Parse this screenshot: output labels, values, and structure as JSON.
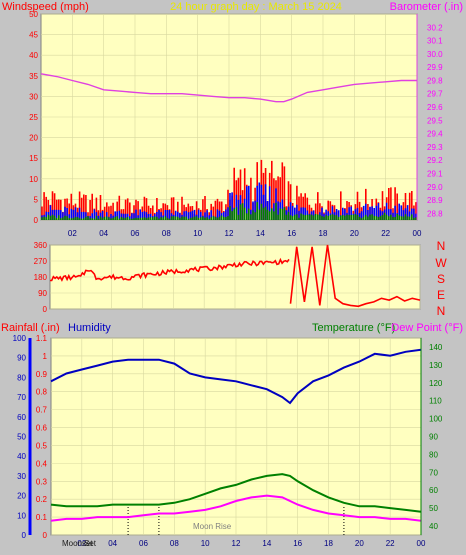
{
  "header": {
    "windspeed_label": "Windspeed (mph)",
    "title": "24 hour graph day : March 15 2024",
    "barometer_label": "Barometer (.in)"
  },
  "direction_labels": [
    "N",
    "W",
    "S",
    "E",
    "N"
  ],
  "lower_header": {
    "rainfall_label": "Rainfall (.in)",
    "humidity_label": "Humidity",
    "temperature_label": "Temperature (°F)",
    "dewpoint_label": "Dew Point (°F)"
  },
  "footer": {
    "moonset_label": "Moonset",
    "moonrise_label": "Moon Rise",
    "sunset_label": "Set"
  },
  "colors": {
    "panel_bg": "#ffffc0",
    "outer_bg": "#c4c4c4",
    "wind_gust": "#ff0000",
    "wind_avg": "#0000ff",
    "wind_low": "#008000",
    "barometer": "#e040e0",
    "direction": "#ff0000",
    "humidity": "#0000c0",
    "temperature": "#008000",
    "dewpoint": "#ff00ff",
    "rainfall": "#ff0000"
  },
  "chart_data": [
    {
      "type": "bar",
      "name": "wind-and-barometer",
      "x_ticks": [
        "02",
        "04",
        "06",
        "08",
        "10",
        "12",
        "14",
        "16",
        "18",
        "20",
        "22",
        "00"
      ],
      "xlim": [
        0,
        24
      ],
      "wind_ylim": [
        0,
        50
      ],
      "wind_ticks": [
        0,
        5,
        10,
        15,
        20,
        25,
        30,
        35,
        40,
        45,
        50
      ],
      "baro_ylim": [
        28.75,
        30.3
      ],
      "baro_ticks": [
        28.8,
        28.9,
        29.0,
        29.1,
        29.2,
        29.3,
        29.4,
        29.5,
        29.6,
        29.7,
        29.8,
        29.9,
        30.0,
        30.1,
        30.2
      ],
      "gust_profile": {
        "x": [
          0,
          2,
          4,
          6,
          8,
          10,
          11.8,
          12,
          14,
          15.5,
          16,
          18,
          20,
          22,
          24
        ],
        "y": [
          6,
          5,
          4.5,
          4,
          4,
          4,
          4.5,
          9,
          11,
          10,
          6,
          5,
          5,
          6,
          5
        ]
      },
      "avg_profile": {
        "x": [
          0,
          2,
          4,
          6,
          8,
          10,
          11.8,
          12,
          14,
          15.5,
          16,
          18,
          20,
          22,
          24
        ],
        "y": [
          3,
          2.5,
          2,
          2,
          2,
          2,
          2,
          6,
          7,
          6.5,
          3.5,
          3,
          3,
          3.5,
          3
        ]
      },
      "low_profile": {
        "x": [
          0,
          2,
          4,
          6,
          8,
          10,
          11.8,
          12,
          14,
          15.5,
          16,
          18,
          20,
          22,
          24
        ],
        "y": [
          1.2,
          1,
          0.8,
          0.8,
          0.8,
          0.8,
          1,
          3,
          4,
          3.5,
          1.5,
          1.2,
          1.2,
          1.5,
          1.2
        ]
      },
      "barometer": {
        "x": [
          0,
          1,
          2,
          3,
          4,
          5,
          6,
          7,
          8,
          9,
          10,
          11,
          12,
          13,
          14,
          15,
          15.5,
          16,
          17,
          18,
          19,
          20,
          21,
          22,
          23,
          24
        ],
        "y": [
          29.85,
          29.83,
          29.8,
          29.77,
          29.73,
          29.72,
          29.71,
          29.7,
          29.7,
          29.7,
          29.69,
          29.68,
          29.67,
          29.67,
          29.66,
          29.64,
          29.64,
          29.66,
          29.71,
          29.73,
          29.75,
          29.77,
          29.78,
          29.79,
          29.8,
          29.8
        ]
      }
    },
    {
      "type": "line",
      "name": "wind-direction",
      "xlim": [
        0,
        24
      ],
      "ylim": [
        0,
        360
      ],
      "y_ticks": [
        0,
        90,
        180,
        270,
        360
      ],
      "direction": {
        "x": [
          0,
          1,
          2,
          2.5,
          3,
          4,
          5,
          6,
          7,
          8,
          9,
          10,
          11,
          12,
          13,
          14,
          15,
          15.5
        ],
        "y": [
          170,
          175,
          180,
          230,
          175,
          180,
          175,
          190,
          200,
          210,
          220,
          225,
          235,
          250,
          255,
          260,
          265,
          270
        ]
      },
      "direction_tail": {
        "x": [
          15.6,
          16,
          16.5,
          17,
          17.5,
          18,
          18.5,
          19,
          19.5,
          20,
          20.5,
          21,
          21.5,
          22,
          22.5,
          23,
          23.5,
          24
        ],
        "y": [
          30,
          350,
          40,
          350,
          20,
          360,
          60,
          30,
          20,
          15,
          30,
          40,
          60,
          50,
          70,
          45,
          60,
          50
        ]
      }
    },
    {
      "type": "line",
      "name": "humidity-temperature-dewpoint",
      "x_ticks": [
        "02",
        "04",
        "06",
        "08",
        "10",
        "12",
        "14",
        "16",
        "18",
        "20",
        "22",
        "00"
      ],
      "xlim": [
        0,
        24
      ],
      "rain_ylim": [
        0,
        1.1
      ],
      "rain_ticks": [
        0,
        0.1,
        0.2,
        0.3,
        0.4,
        0.5,
        0.6,
        0.7,
        0.8,
        0.9,
        1,
        1.1
      ],
      "humidity_ylim": [
        0,
        100
      ],
      "humidity_ticks": [
        0,
        10,
        20,
        30,
        40,
        50,
        60,
        70,
        80,
        90,
        100
      ],
      "temp_ylim": [
        35,
        145
      ],
      "temp_ticks": [
        40,
        50,
        60,
        70,
        80,
        90,
        100,
        110,
        120,
        130,
        140
      ],
      "humidity": {
        "x": [
          0,
          1,
          2,
          3,
          4,
          5,
          6,
          7,
          8,
          9,
          10,
          11,
          12,
          13,
          14,
          15,
          15.5,
          16,
          17,
          18,
          19,
          20,
          21,
          22,
          23,
          24
        ],
        "y": [
          78,
          82,
          84,
          86,
          88,
          89,
          89,
          89,
          87,
          82,
          80,
          79,
          78,
          76,
          74,
          70,
          67,
          72,
          78,
          81,
          85,
          88,
          92,
          91,
          93,
          94
        ]
      },
      "temperature": {
        "x": [
          0,
          1,
          2,
          3,
          4,
          5,
          6,
          7,
          8,
          9,
          10,
          11,
          12,
          13,
          14,
          15,
          15.5,
          16,
          17,
          18,
          19,
          20,
          21,
          22,
          23,
          24
        ],
        "y": [
          52,
          51,
          51,
          51,
          52,
          52,
          52,
          52,
          53,
          55,
          58,
          61,
          63,
          66,
          68,
          69,
          68,
          65,
          60,
          56,
          53,
          51,
          51,
          50,
          49,
          48
        ]
      },
      "dewpoint": {
        "x": [
          0,
          1,
          2,
          3,
          4,
          5,
          6,
          7,
          8,
          9,
          10,
          11,
          12,
          13,
          14,
          15,
          16,
          17,
          18,
          19,
          20,
          21,
          22,
          23,
          24
        ],
        "y": [
          43,
          44,
          44,
          45,
          45,
          45,
          46,
          47,
          47,
          48,
          49,
          51,
          54,
          56,
          57,
          56,
          52,
          49,
          47,
          46,
          45,
          45,
          44,
          44,
          43
        ]
      },
      "markers_x": [
        5,
        7,
        19
      ]
    }
  ]
}
